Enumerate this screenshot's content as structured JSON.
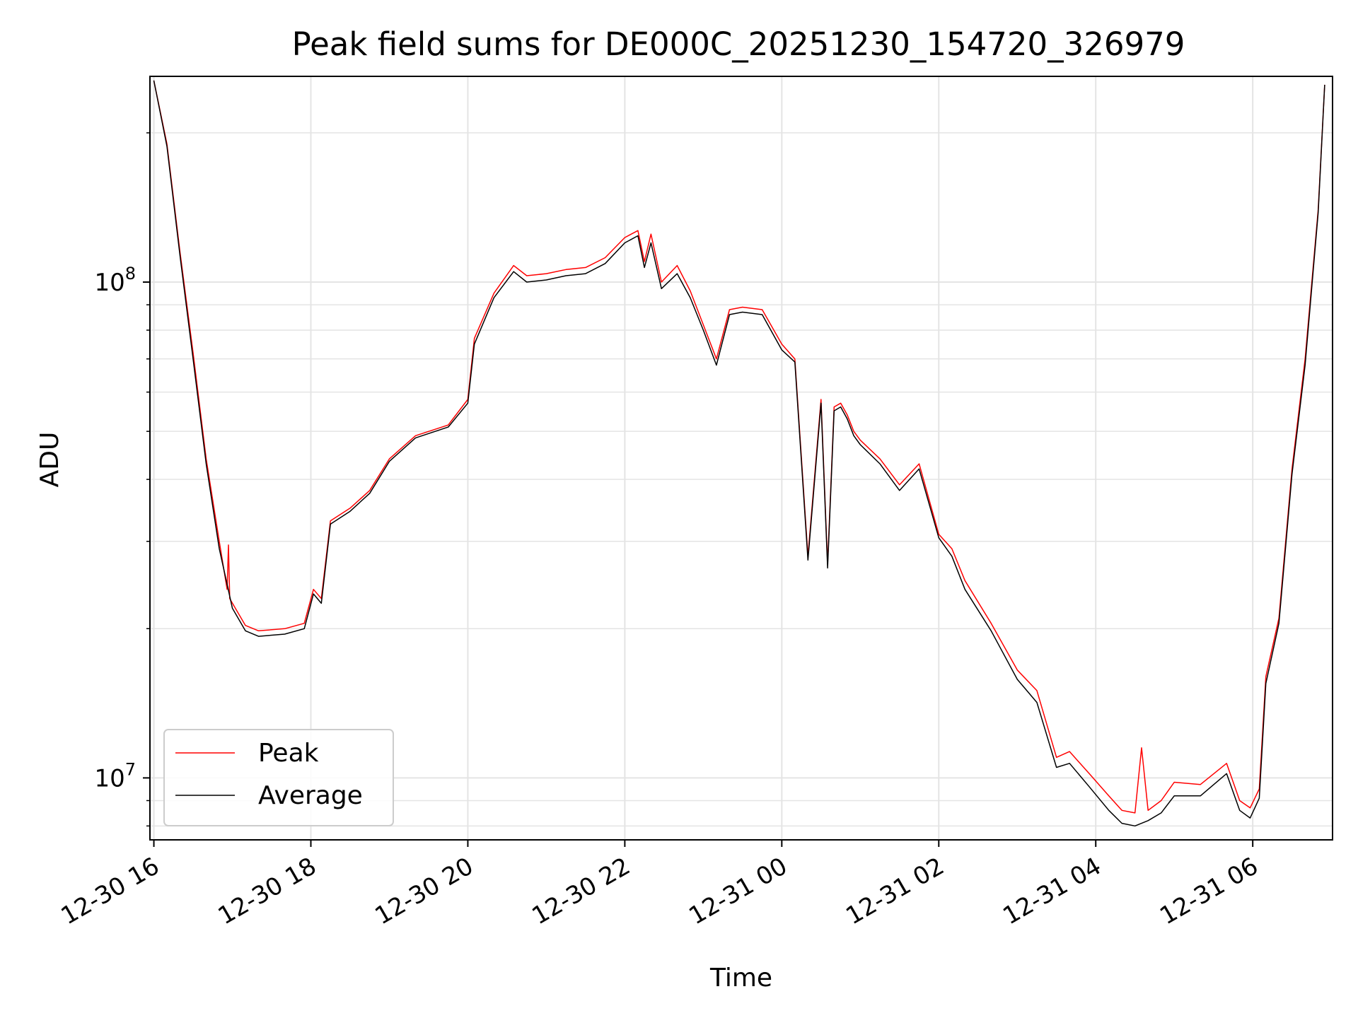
{
  "chart_data": {
    "type": "line",
    "title": "Peak field sums for DE000C_20251230_154720_326979",
    "xlabel": "Time",
    "ylabel": "ADU",
    "y_scale": "log",
    "ylim": [
      7500000,
      260000000
    ],
    "xlim": [
      "2025-12-30 15:57",
      "2025-12-31 07:01"
    ],
    "grid": true,
    "legend_position": "lower-left",
    "x_tick_labels": [
      "12-30 16",
      "12-30 18",
      "12-30 20",
      "12-30 22",
      "12-31 00",
      "12-31 02",
      "12-31 04",
      "12-31 06"
    ],
    "x_tick_times": [
      "2025-12-30 16:00",
      "2025-12-30 18:00",
      "2025-12-30 20:00",
      "2025-12-30 22:00",
      "2025-12-31 00:00",
      "2025-12-31 02:00",
      "2025-12-31 04:00",
      "2025-12-31 06:00"
    ],
    "y_tick_values": [
      10000000,
      100000000
    ],
    "y_tick_labels": [
      {
        "base": "10",
        "exp": "7"
      },
      {
        "base": "10",
        "exp": "8"
      }
    ],
    "series": [
      {
        "name": "Peak",
        "color": "#ff0000",
        "x": [
          "2025-12-30 16:00",
          "2025-12-30 16:10",
          "2025-12-30 16:20",
          "2025-12-30 16:30",
          "2025-12-30 16:40",
          "2025-12-30 16:50",
          "2025-12-30 16:56",
          "2025-12-30 16:57",
          "2025-12-30 16:58",
          "2025-12-30 17:10",
          "2025-12-30 17:20",
          "2025-12-30 17:40",
          "2025-12-30 17:55",
          "2025-12-30 18:02",
          "2025-12-30 18:08",
          "2025-12-30 18:15",
          "2025-12-30 18:30",
          "2025-12-30 18:45",
          "2025-12-30 19:00",
          "2025-12-30 19:20",
          "2025-12-30 19:45",
          "2025-12-30 20:00",
          "2025-12-30 20:05",
          "2025-12-30 20:20",
          "2025-12-30 20:35",
          "2025-12-30 20:45",
          "2025-12-30 21:00",
          "2025-12-30 21:15",
          "2025-12-30 21:30",
          "2025-12-30 21:45",
          "2025-12-30 22:00",
          "2025-12-30 22:10",
          "2025-12-30 22:15",
          "2025-12-30 22:20",
          "2025-12-30 22:28",
          "2025-12-30 22:40",
          "2025-12-30 22:50",
          "2025-12-30 23:00",
          "2025-12-30 23:10",
          "2025-12-30 23:20",
          "2025-12-30 23:30",
          "2025-12-30 23:45",
          "2025-12-31 00:00",
          "2025-12-31 00:10",
          "2025-12-31 00:20",
          "2025-12-31 00:30",
          "2025-12-31 00:35",
          "2025-12-31 00:40",
          "2025-12-31 00:45",
          "2025-12-31 00:50",
          "2025-12-31 00:55",
          "2025-12-31 01:00",
          "2025-12-31 01:15",
          "2025-12-31 01:30",
          "2025-12-31 01:45",
          "2025-12-31 02:00",
          "2025-12-31 02:10",
          "2025-12-31 02:20",
          "2025-12-31 02:40",
          "2025-12-31 03:00",
          "2025-12-31 03:15",
          "2025-12-31 03:30",
          "2025-12-31 03:40",
          "2025-12-31 03:55",
          "2025-12-31 04:10",
          "2025-12-31 04:20",
          "2025-12-31 04:30",
          "2025-12-31 04:35",
          "2025-12-31 04:40",
          "2025-12-31 04:50",
          "2025-12-31 05:00",
          "2025-12-31 05:20",
          "2025-12-31 05:40",
          "2025-12-31 05:50",
          "2025-12-31 05:58",
          "2025-12-31 06:05",
          "2025-12-31 06:10",
          "2025-12-31 06:20",
          "2025-12-31 06:30",
          "2025-12-31 06:40",
          "2025-12-31 06:50",
          "2025-12-31 06:55"
        ],
        "y": [
          255000000,
          190000000,
          115000000,
          72000000,
          44000000,
          30000000,
          24000000,
          29500000,
          23000000,
          20300000,
          19800000,
          20000000,
          20500000,
          24000000,
          23000000,
          33000000,
          35000000,
          38000000,
          44000000,
          49000000,
          51500000,
          58000000,
          77000000,
          95000000,
          108000000,
          103000000,
          104000000,
          106000000,
          107000000,
          112000000,
          123000000,
          127000000,
          110000000,
          125000000,
          100000000,
          108000000,
          96000000,
          82000000,
          70000000,
          88000000,
          89000000,
          88000000,
          75000000,
          70000000,
          28000000,
          58000000,
          27000000,
          56000000,
          57000000,
          54000000,
          50000000,
          48000000,
          44000000,
          39000000,
          43000000,
          31000000,
          29000000,
          25000000,
          20500000,
          16500000,
          15000000,
          11000000,
          11300000,
          10200000,
          9200000,
          8600000,
          8500000,
          11500000,
          8600000,
          9000000,
          9800000,
          9700000,
          10700000,
          9000000,
          8700000,
          9500000,
          16000000,
          21000000,
          42000000,
          70000000,
          140000000,
          250000000
        ]
      },
      {
        "name": "Average",
        "color": "#000000",
        "x": [
          "2025-12-30 16:00",
          "2025-12-30 16:10",
          "2025-12-30 16:20",
          "2025-12-30 16:30",
          "2025-12-30 16:40",
          "2025-12-30 16:50",
          "2025-12-30 17:00",
          "2025-12-30 17:10",
          "2025-12-30 17:20",
          "2025-12-30 17:40",
          "2025-12-30 17:55",
          "2025-12-30 18:02",
          "2025-12-30 18:08",
          "2025-12-30 18:15",
          "2025-12-30 18:30",
          "2025-12-30 18:45",
          "2025-12-30 19:00",
          "2025-12-30 19:20",
          "2025-12-30 19:45",
          "2025-12-30 20:00",
          "2025-12-30 20:05",
          "2025-12-30 20:20",
          "2025-12-30 20:35",
          "2025-12-30 20:45",
          "2025-12-30 21:00",
          "2025-12-30 21:15",
          "2025-12-30 21:30",
          "2025-12-30 21:45",
          "2025-12-30 22:00",
          "2025-12-30 22:10",
          "2025-12-30 22:15",
          "2025-12-30 22:20",
          "2025-12-30 22:28",
          "2025-12-30 22:40",
          "2025-12-30 22:50",
          "2025-12-30 23:00",
          "2025-12-30 23:10",
          "2025-12-30 23:20",
          "2025-12-30 23:30",
          "2025-12-30 23:45",
          "2025-12-31 00:00",
          "2025-12-31 00:10",
          "2025-12-31 00:20",
          "2025-12-31 00:30",
          "2025-12-31 00:35",
          "2025-12-31 00:40",
          "2025-12-31 00:45",
          "2025-12-31 00:50",
          "2025-12-31 00:55",
          "2025-12-31 01:00",
          "2025-12-31 01:15",
          "2025-12-31 01:30",
          "2025-12-31 01:45",
          "2025-12-31 02:00",
          "2025-12-31 02:10",
          "2025-12-31 02:20",
          "2025-12-31 02:40",
          "2025-12-31 03:00",
          "2025-12-31 03:15",
          "2025-12-31 03:30",
          "2025-12-31 03:40",
          "2025-12-31 03:55",
          "2025-12-31 04:10",
          "2025-12-31 04:20",
          "2025-12-31 04:30",
          "2025-12-31 04:40",
          "2025-12-31 04:50",
          "2025-12-31 05:00",
          "2025-12-31 05:20",
          "2025-12-31 05:40",
          "2025-12-31 05:50",
          "2025-12-31 05:58",
          "2025-12-31 06:05",
          "2025-12-31 06:10",
          "2025-12-31 06:20",
          "2025-12-31 06:30",
          "2025-12-31 06:40",
          "2025-12-31 06:50",
          "2025-12-31 06:55"
        ],
        "y": [
          255000000,
          188000000,
          113000000,
          70000000,
          43000000,
          29000000,
          22000000,
          19800000,
          19300000,
          19500000,
          20000000,
          23500000,
          22500000,
          32500000,
          34500000,
          37500000,
          43500000,
          48500000,
          51000000,
          57000000,
          75000000,
          93000000,
          105000000,
          100000000,
          101000000,
          103000000,
          104000000,
          109000000,
          120000000,
          124000000,
          107000000,
          120000000,
          97000000,
          104000000,
          93000000,
          80000000,
          68000000,
          86000000,
          87000000,
          86000000,
          73000000,
          69000000,
          27500000,
          57000000,
          26500000,
          55000000,
          56000000,
          53000000,
          49000000,
          47000000,
          43000000,
          38000000,
          42000000,
          30500000,
          28000000,
          24000000,
          19800000,
          15800000,
          14200000,
          10500000,
          10700000,
          9600000,
          8600000,
          8100000,
          8000000,
          8200000,
          8500000,
          9200000,
          9200000,
          10200000,
          8600000,
          8300000,
          9100000,
          15500000,
          20500000,
          41000000,
          68000000,
          138000000,
          250000000
        ]
      }
    ]
  }
}
